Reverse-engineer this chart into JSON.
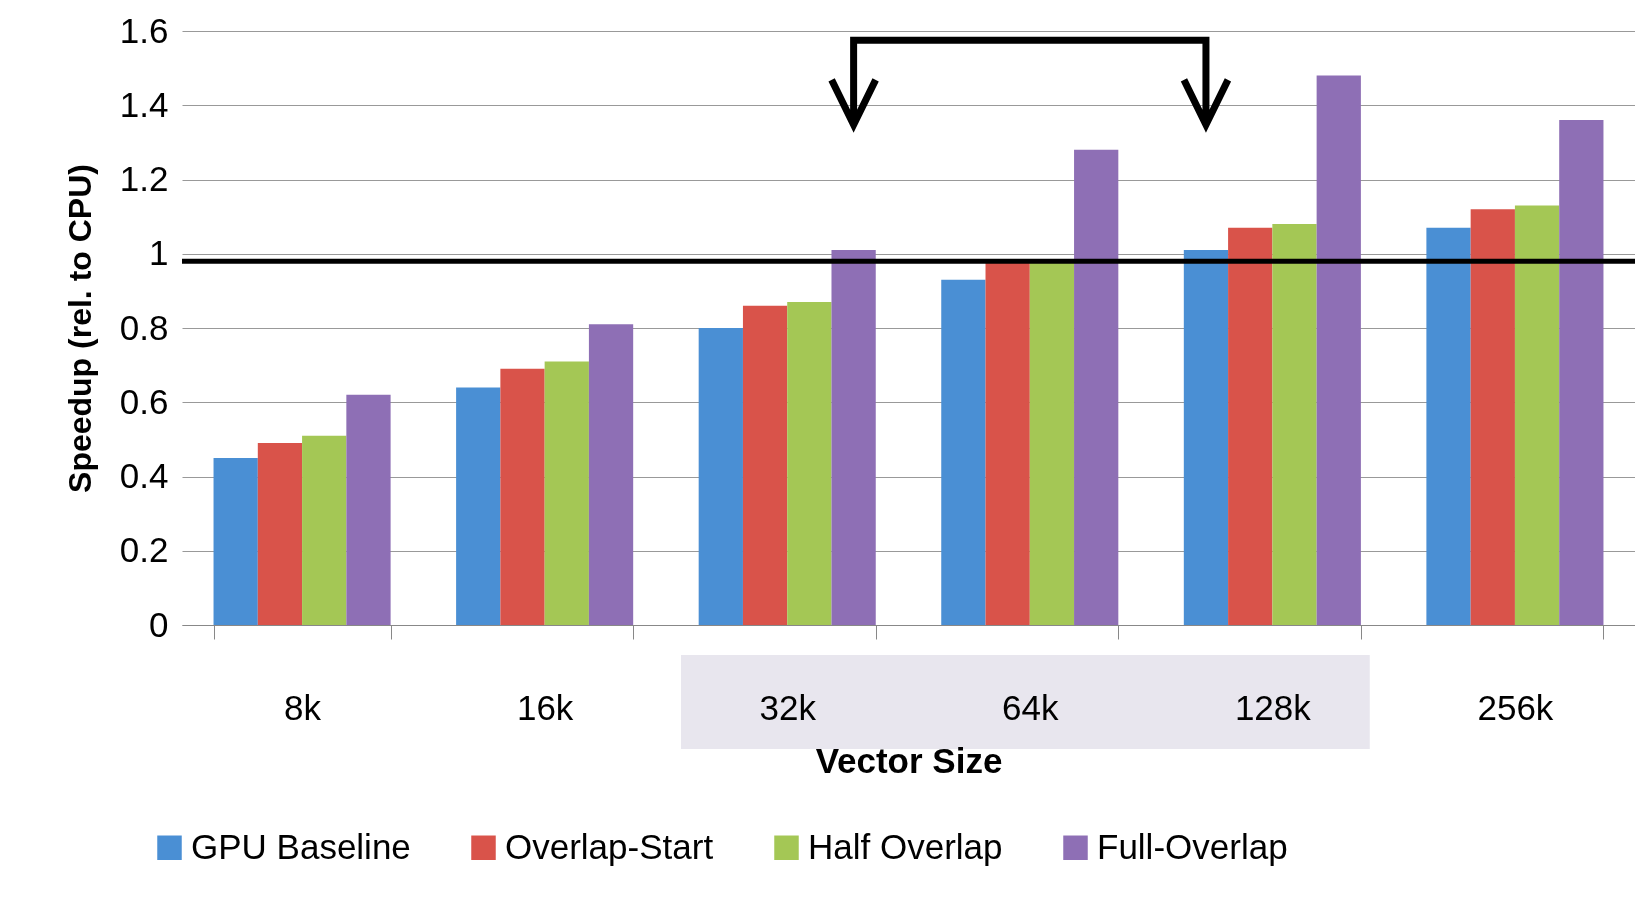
{
  "chart_data": {
    "type": "bar",
    "xlabel": "Vector Size",
    "ylabel": "Speedup (rel. to CPU)",
    "categories": [
      "8k",
      "16k",
      "32k",
      "64k",
      "128k",
      "256k"
    ],
    "series": [
      {
        "name": "GPU Baseline",
        "color": "#4a8fd4",
        "values": [
          0.45,
          0.64,
          0.8,
          0.93,
          1.01,
          1.07
        ]
      },
      {
        "name": "Overlap-Start",
        "color": "#d9534a",
        "values": [
          0.49,
          0.69,
          0.86,
          0.98,
          1.07,
          1.12
        ]
      },
      {
        "name": "Half Overlap",
        "color": "#a4c755",
        "values": [
          0.51,
          0.71,
          0.87,
          0.98,
          1.08,
          1.13
        ]
      },
      {
        "name": "Full-Overlap",
        "color": "#8e6fb5",
        "values": [
          0.62,
          0.81,
          1.01,
          1.28,
          1.48,
          1.36
        ]
      }
    ],
    "ylim": [
      0,
      1.6
    ],
    "yticks": [
      0,
      0.2,
      0.4,
      0.6,
      0.8,
      1,
      1.2,
      1.4,
      1.6
    ],
    "grid": "y",
    "legend": "bottom",
    "ref_lines": [
      {
        "axis": "y",
        "value": 0.98,
        "color": "#000000"
      }
    ]
  }
}
